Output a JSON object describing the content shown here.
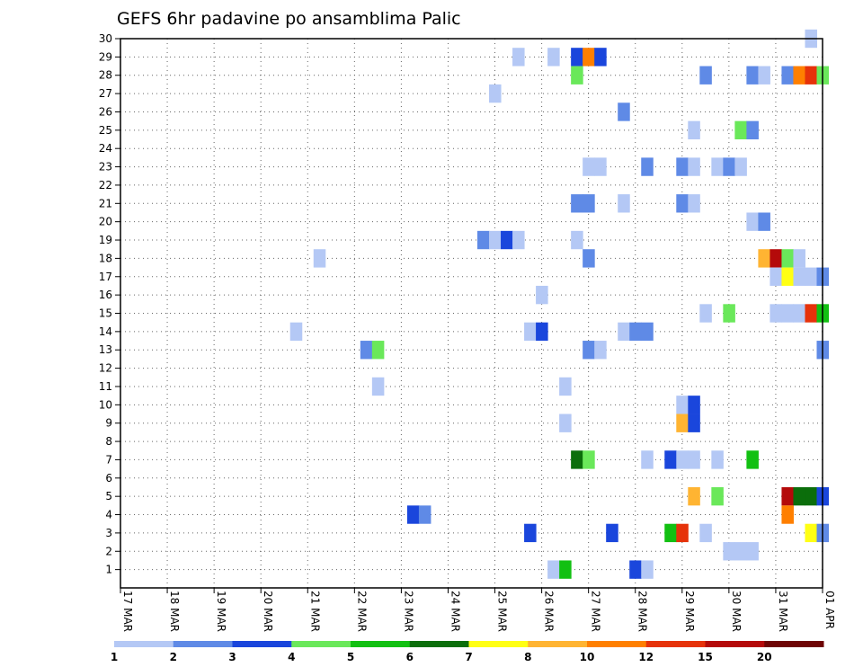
{
  "chart_data": {
    "type": "heatmap",
    "title": "GEFS 6hr padavine po ansamblima Palic",
    "x_tick_labels": [
      "17 MAR",
      "18 MAR",
      "19 MAR",
      "20 MAR",
      "21 MAR",
      "22 MAR",
      "23 MAR",
      "24 MAR",
      "25 MAR",
      "26 MAR",
      "27 MAR",
      "28 MAR",
      "29 MAR",
      "30 MAR",
      "31 MAR",
      "01 APR"
    ],
    "x_unit": "days since 17 MAR 00Z",
    "xlim": [
      0,
      15
    ],
    "y_tick_labels": [
      "1",
      "2",
      "3",
      "4",
      "5",
      "6",
      "7",
      "8",
      "9",
      "10",
      "11",
      "12",
      "13",
      "14",
      "15",
      "16",
      "17",
      "18",
      "19",
      "20",
      "21",
      "22",
      "23",
      "24",
      "25",
      "26",
      "27",
      "28",
      "29",
      "30"
    ],
    "ylim": [
      0,
      30
    ],
    "grid": true,
    "legend": {
      "placement": "bottom",
      "colors": [
        "#b4c8f5",
        "#5f8ae6",
        "#1a46dc",
        "#6ae85a",
        "#12c012",
        "#0b6e0b",
        "#ffff14",
        "#ffb432",
        "#ff7f00",
        "#e6320a",
        "#b40a0a",
        "#6e0505"
      ],
      "labels": [
        "1",
        "2",
        "3",
        "4",
        "5",
        "6",
        "7",
        "8",
        "10",
        "12",
        "15",
        "20"
      ]
    },
    "cells": [
      [
        14.75,
        30,
        1
      ],
      [
        8.5,
        29,
        1
      ],
      [
        9.25,
        29,
        1
      ],
      [
        9.75,
        29,
        3
      ],
      [
        10,
        29,
        9
      ],
      [
        10.25,
        29,
        3
      ],
      [
        9.75,
        28,
        4
      ],
      [
        12.5,
        28,
        2
      ],
      [
        13.5,
        28,
        2
      ],
      [
        13.75,
        28,
        1
      ],
      [
        14.25,
        28,
        2
      ],
      [
        14.5,
        28,
        9
      ],
      [
        14.75,
        28,
        10
      ],
      [
        15,
        28,
        4
      ],
      [
        8,
        27,
        1
      ],
      [
        10.75,
        26,
        2
      ],
      [
        12.25,
        25,
        1
      ],
      [
        13.25,
        25,
        4
      ],
      [
        13.5,
        25,
        2
      ],
      [
        10,
        23,
        1
      ],
      [
        10.25,
        23,
        1
      ],
      [
        11.25,
        23,
        2
      ],
      [
        12,
        23,
        2
      ],
      [
        12.25,
        23,
        1
      ],
      [
        12.75,
        23,
        1
      ],
      [
        13,
        23,
        2
      ],
      [
        13.25,
        23,
        1
      ],
      [
        9.75,
        21,
        2
      ],
      [
        10,
        21,
        2
      ],
      [
        10.75,
        21,
        1
      ],
      [
        12,
        21,
        2
      ],
      [
        12.25,
        21,
        1
      ],
      [
        13.5,
        20,
        1
      ],
      [
        13.75,
        20,
        2
      ],
      [
        7.75,
        19,
        2
      ],
      [
        8,
        19,
        1
      ],
      [
        8.25,
        19,
        3
      ],
      [
        8.5,
        19,
        1
      ],
      [
        9.75,
        19,
        1
      ],
      [
        4.25,
        18,
        1
      ],
      [
        10,
        18,
        2
      ],
      [
        13.75,
        18,
        8
      ],
      [
        14,
        18,
        11
      ],
      [
        14.25,
        18,
        4
      ],
      [
        14.5,
        18,
        1
      ],
      [
        14,
        17,
        1
      ],
      [
        14.25,
        17,
        7
      ],
      [
        14.5,
        17,
        1
      ],
      [
        14.75,
        17,
        1
      ],
      [
        15,
        17,
        2
      ],
      [
        9,
        16,
        1
      ],
      [
        12.5,
        15,
        1
      ],
      [
        13,
        15,
        4
      ],
      [
        14,
        15,
        1
      ],
      [
        14.25,
        15,
        1
      ],
      [
        14.5,
        15,
        1
      ],
      [
        14.75,
        15,
        10
      ],
      [
        15,
        15,
        5
      ],
      [
        3.75,
        14,
        1
      ],
      [
        8.75,
        14,
        1
      ],
      [
        9,
        14,
        3
      ],
      [
        10.75,
        14,
        1
      ],
      [
        11,
        14,
        2
      ],
      [
        11.25,
        14,
        2
      ],
      [
        5.25,
        13,
        2
      ],
      [
        5.5,
        13,
        4
      ],
      [
        10,
        13,
        2
      ],
      [
        10.25,
        13,
        1
      ],
      [
        15,
        13,
        2
      ],
      [
        5.5,
        11,
        1
      ],
      [
        9.5,
        11,
        1
      ],
      [
        12,
        10,
        1
      ],
      [
        12.25,
        10,
        3
      ],
      [
        9.5,
        9,
        1
      ],
      [
        12,
        9,
        8
      ],
      [
        12.25,
        9,
        3
      ],
      [
        9.75,
        7,
        6
      ],
      [
        10,
        7,
        4
      ],
      [
        11.25,
        7,
        1
      ],
      [
        11.75,
        7,
        3
      ],
      [
        12,
        7,
        1
      ],
      [
        12.25,
        7,
        1
      ],
      [
        12.75,
        7,
        1
      ],
      [
        13.5,
        7,
        5
      ],
      [
        12.25,
        5,
        8
      ],
      [
        12.75,
        5,
        4
      ],
      [
        14.25,
        5,
        11
      ],
      [
        14.5,
        5,
        6
      ],
      [
        14.75,
        5,
        6
      ],
      [
        15,
        5,
        3
      ],
      [
        6.25,
        4,
        3
      ],
      [
        6.5,
        4,
        2
      ],
      [
        14.25,
        4,
        9
      ],
      [
        8.75,
        3,
        3
      ],
      [
        10.5,
        3,
        3
      ],
      [
        11.75,
        3,
        5
      ],
      [
        12,
        3,
        10
      ],
      [
        12.5,
        3,
        1
      ],
      [
        14.75,
        3,
        7
      ],
      [
        15,
        3,
        2
      ],
      [
        13,
        2,
        1
      ],
      [
        13.25,
        2,
        1
      ],
      [
        13.5,
        2,
        1
      ],
      [
        9.25,
        1,
        1
      ],
      [
        9.5,
        1,
        5
      ],
      [
        11,
        1,
        3
      ],
      [
        11.25,
        1,
        1
      ]
    ]
  }
}
